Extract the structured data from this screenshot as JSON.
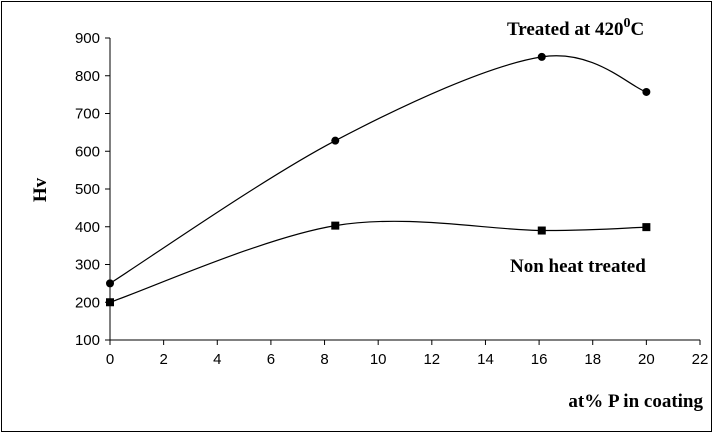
{
  "chart_data": {
    "type": "line",
    "xlabel": "at% P in coating",
    "ylabel": "Hv",
    "xlim": [
      0,
      22
    ],
    "ylim": [
      100,
      900
    ],
    "x_ticks": [
      "0",
      "2",
      "4",
      "6",
      "8",
      "10",
      "12",
      "14",
      "16",
      "18",
      "20",
      "22"
    ],
    "y_ticks": [
      "100",
      "200",
      "300",
      "400",
      "500",
      "600",
      "700",
      "800",
      "900"
    ],
    "grid": false,
    "series": [
      {
        "name_main": "Treated at 420",
        "name_sup": "0",
        "name_end": "C",
        "marker": "circle",
        "x": [
          0,
          8.4,
          16.1,
          20
        ],
        "y": [
          250,
          628,
          850,
          757
        ]
      },
      {
        "name": "Non heat treated",
        "marker": "square",
        "x": [
          0,
          8.4,
          16.1,
          20
        ],
        "y": [
          200,
          403,
          390,
          399
        ]
      }
    ],
    "colors": {
      "line": "#000000",
      "marker": "#000000",
      "background": "#ffffff"
    }
  }
}
